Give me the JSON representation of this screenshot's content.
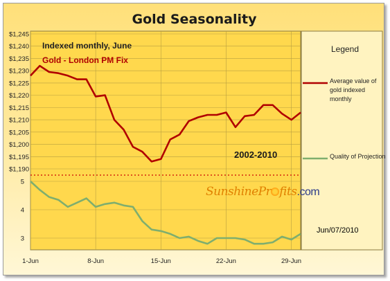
{
  "title": "Gold Seasonality",
  "subtitle": "Indexed monthly, June",
  "series_label": "Gold - London PM Fix",
  "period_label": "2002-2010",
  "date_label": "Jun/07/2010",
  "watermark": {
    "part1": "Sunshine",
    "part2": "Pr",
    "part3": "fits",
    "part4": ".com"
  },
  "legend": {
    "title": "Legend",
    "items": [
      {
        "label": "Average value of gold indexed monthly",
        "color": "#b00000"
      },
      {
        "label": "Quality of Projection",
        "color": "#7fae6e"
      }
    ]
  },
  "colors": {
    "price_line": "#b00000",
    "quality_line": "#7fae6e",
    "divider": "#cc0000",
    "plot_bg": "#ffd84d",
    "legend_bg": "#fff3c0"
  },
  "chart_data": {
    "type": "line",
    "x_tick_labels": [
      "1-Jun",
      "8-Jun",
      "15-Jun",
      "22-Jun",
      "29-Jun"
    ],
    "x_tick_days": [
      1,
      8,
      15,
      22,
      29
    ],
    "x": [
      1,
      2,
      3,
      4,
      5,
      6,
      7,
      8,
      9,
      10,
      11,
      12,
      13,
      14,
      15,
      16,
      17,
      18,
      19,
      20,
      21,
      22,
      23,
      24,
      25,
      26,
      27,
      28,
      29,
      30
    ],
    "series": [
      {
        "name": "Average value of gold indexed monthly",
        "panel": "upper",
        "values": [
          1228,
          1232,
          1229.5,
          1229,
          1228,
          1226.5,
          1226.5,
          1219.5,
          1220,
          1210,
          1206,
          1199,
          1197,
          1193,
          1194,
          1202,
          1204,
          1209.5,
          1211,
          1212,
          1212,
          1213,
          1207,
          1211.5,
          1212,
          1216,
          1216,
          1212.5,
          1210,
          1213
        ],
        "ylim": [
          1190,
          1245
        ],
        "y_tick_labels": [
          "$1,190",
          "$1,195",
          "$1,200",
          "$1,205",
          "$1,210",
          "$1,215",
          "$1,220",
          "$1,225",
          "$1,230",
          "$1,235",
          "$1,240",
          "$1,245"
        ]
      },
      {
        "name": "Quality of Projection",
        "panel": "lower",
        "values": [
          5,
          4.7,
          4.45,
          4.35,
          4.1,
          4.25,
          4.4,
          4.1,
          4.2,
          4.25,
          4.15,
          4.1,
          3.6,
          3.3,
          3.25,
          3.15,
          3.0,
          3.05,
          2.9,
          2.8,
          3.0,
          3.0,
          3.0,
          2.95,
          2.8,
          2.8,
          2.85,
          3.05,
          2.95,
          3.15
        ],
        "ylim": [
          2.7,
          5.1
        ],
        "y_tick_labels": [
          "3",
          "4",
          "5"
        ]
      }
    ],
    "grid": true
  }
}
